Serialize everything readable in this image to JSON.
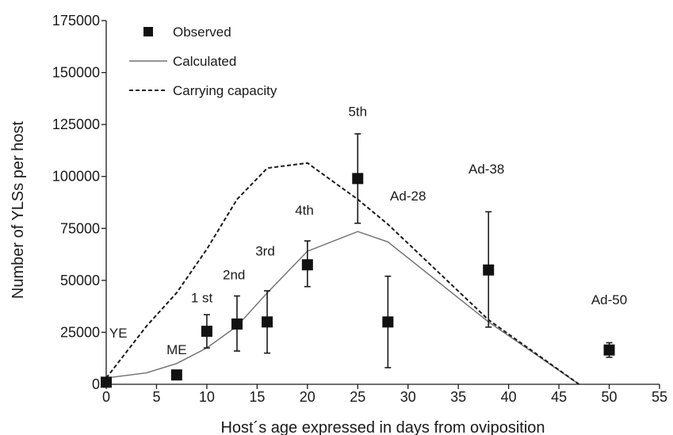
{
  "chart_data": {
    "type": "line",
    "title": "",
    "xlabel": "Host´s age expressed in days from oviposition",
    "ylabel": "Number of YLSs per host",
    "xlim": [
      0,
      55
    ],
    "ylim": [
      0,
      175000
    ],
    "xticks": [
      0,
      5,
      10,
      15,
      20,
      25,
      30,
      35,
      40,
      45,
      50,
      55
    ],
    "yticks": [
      0,
      25000,
      50000,
      75000,
      100000,
      125000,
      150000,
      175000
    ],
    "grid": false,
    "legend_position": "top-left",
    "legend": [
      {
        "label": "Observed",
        "style": "square-marker"
      },
      {
        "label": "Calculated",
        "style": "solid-line"
      },
      {
        "label": "Carrying capacity",
        "style": "dashed-line"
      }
    ],
    "series": [
      {
        "name": "Observed",
        "kind": "points-with-error-bars",
        "points": [
          {
            "x": 0,
            "y": 1000,
            "low": 1000,
            "high": 1000
          },
          {
            "x": 7,
            "y": 4500,
            "low": 4500,
            "high": 4500
          },
          {
            "x": 10,
            "y": 25500,
            "low": 17500,
            "high": 33500
          },
          {
            "x": 13,
            "y": 29000,
            "low": 16000,
            "high": 42500
          },
          {
            "x": 16,
            "y": 30000,
            "low": 15000,
            "high": 45000
          },
          {
            "x": 20,
            "y": 57500,
            "low": 47000,
            "high": 69000
          },
          {
            "x": 25,
            "y": 99000,
            "low": 77500,
            "high": 120500
          },
          {
            "x": 28,
            "y": 30000,
            "low": 8000,
            "high": 52000
          },
          {
            "x": 38,
            "y": 55000,
            "low": 27500,
            "high": 83000
          },
          {
            "x": 50,
            "y": 16500,
            "low": 13000,
            "high": 20000
          }
        ]
      },
      {
        "name": "Calculated",
        "kind": "solid-line",
        "points": [
          [
            0,
            3000
          ],
          [
            4,
            5500
          ],
          [
            7,
            10000
          ],
          [
            10,
            17500
          ],
          [
            13,
            28000
          ],
          [
            16,
            44000
          ],
          [
            20,
            64000
          ],
          [
            25,
            73500
          ],
          [
            28,
            68500
          ],
          [
            38,
            30000
          ],
          [
            47,
            0
          ]
        ]
      },
      {
        "name": "Carrying capacity",
        "kind": "dashed-line",
        "points": [
          [
            0,
            3000
          ],
          [
            4,
            28000
          ],
          [
            7,
            44000
          ],
          [
            10,
            65000
          ],
          [
            13,
            89000
          ],
          [
            16,
            104000
          ],
          [
            20,
            106500
          ],
          [
            25,
            89000
          ],
          [
            28,
            77000
          ],
          [
            38,
            31000
          ],
          [
            47,
            0
          ]
        ]
      }
    ],
    "annotations": [
      {
        "text": "YE",
        "x": 1.2,
        "y": 22500
      },
      {
        "text": "ME",
        "x": 7,
        "y": 14500
      },
      {
        "text": "1 st",
        "x": 9.5,
        "y": 39500
      },
      {
        "text": "2nd",
        "x": 12.7,
        "y": 50500
      },
      {
        "text": "3rd",
        "x": 15.8,
        "y": 62000
      },
      {
        "text": "4th",
        "x": 19.7,
        "y": 81500
      },
      {
        "text": "5th",
        "x": 25,
        "y": 129000
      },
      {
        "text": "Ad-28",
        "x": 30,
        "y": 88500
      },
      {
        "text": "Ad-38",
        "x": 37.8,
        "y": 101500
      },
      {
        "text": "Ad-50",
        "x": 50,
        "y": 38500
      }
    ]
  }
}
